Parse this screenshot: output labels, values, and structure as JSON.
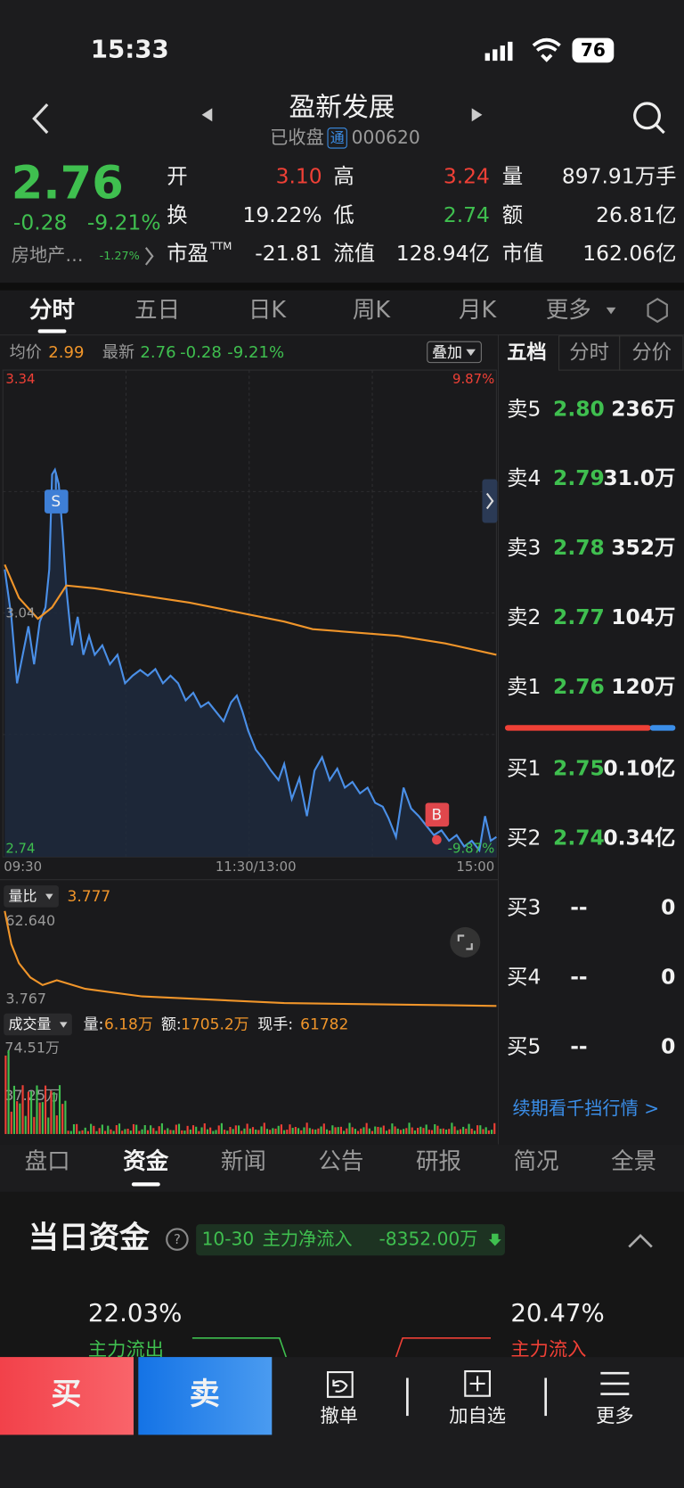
{
  "status_bar": {
    "time": "15:33",
    "battery": "76"
  },
  "header": {
    "title": "盈新发展",
    "state": "已收盘",
    "badge": "通",
    "code": "000620"
  },
  "quote": {
    "price": "2.76",
    "change": "-0.28",
    "change_pct": "-9.21%",
    "sector": "房地产…",
    "sector_pct": "-1.27%",
    "stats": [
      [
        {
          "label": "开",
          "value": "3.10"
        },
        {
          "label": "高",
          "value": "3.24"
        },
        {
          "label": "量",
          "value": "897.91万手"
        }
      ],
      [
        {
          "label": "换",
          "value": "19.22%"
        },
        {
          "label": "低",
          "value": "2.74"
        },
        {
          "label": "额",
          "value": "26.81亿"
        }
      ],
      [
        {
          "label": "市盈",
          "sup": "TTM",
          "value": "-21.81"
        },
        {
          "label": "流值",
          "value": "128.94亿"
        },
        {
          "label": "市值",
          "value": "162.06亿"
        }
      ]
    ]
  },
  "chart_tabs": [
    "分时",
    "五日",
    "日K",
    "周K",
    "月K",
    "更多"
  ],
  "intraday": {
    "avg_label": "均价",
    "avg": "2.99",
    "latest_label": "最新",
    "latest": "2.76",
    "change": "-0.28",
    "change_pct": "-9.21%",
    "overlay": "叠加",
    "price_high": "3.34",
    "pct_high": "9.87%",
    "price_mid": "3.04",
    "price_low": "2.74",
    "pct_low": "-9.87%",
    "times": [
      "09:30",
      "11:30/13:00",
      "15:00"
    ],
    "sell_marker": "S",
    "buy_marker": "B"
  },
  "volume_ratio": {
    "label": "量比",
    "value": "3.777",
    "max": "62.640",
    "min": "3.767"
  },
  "volume": {
    "label": "成交量",
    "vol_label": "量:",
    "vol": "6.18万",
    "amt_label": "额:",
    "amt": "1705.2万",
    "hand_label": "现手:",
    "hand": "61782",
    "max": "74.51万",
    "mid": "37.25万"
  },
  "orderbook": {
    "tabs": [
      "五档",
      "分时",
      "分价"
    ],
    "sell": [
      {
        "label": "卖5",
        "price": "2.80",
        "volume": "236万"
      },
      {
        "label": "卖4",
        "price": "2.79",
        "volume": "31.0万"
      },
      {
        "label": "卖3",
        "price": "2.78",
        "volume": "352万"
      },
      {
        "label": "卖2",
        "price": "2.77",
        "volume": "104万"
      },
      {
        "label": "卖1",
        "price": "2.76",
        "volume": "120万"
      }
    ],
    "buy": [
      {
        "label": "买1",
        "price": "2.75",
        "volume": "0.10亿"
      },
      {
        "label": "买2",
        "price": "2.74",
        "volume": "0.34亿"
      },
      {
        "label": "买3",
        "price": "--",
        "volume": "0"
      },
      {
        "label": "买4",
        "price": "--",
        "volume": "0"
      },
      {
        "label": "买5",
        "price": "--",
        "volume": "0"
      }
    ],
    "link": "续期看千挡行情 >"
  },
  "info_tabs": [
    "盘口",
    "资金",
    "新闻",
    "公告",
    "研报",
    "简况",
    "全景"
  ],
  "fund": {
    "title": "当日资金",
    "date": "10-30",
    "net_label": "主力净流入",
    "net": "-8352.00万",
    "out_pct": "22.03%",
    "out_label": "主力流出",
    "in_pct": "20.47%",
    "in_label": "主力流入"
  },
  "actions": {
    "buy": "买",
    "sell": "卖",
    "cancel": "撤单",
    "watch": "加自选",
    "more": "更多"
  }
}
